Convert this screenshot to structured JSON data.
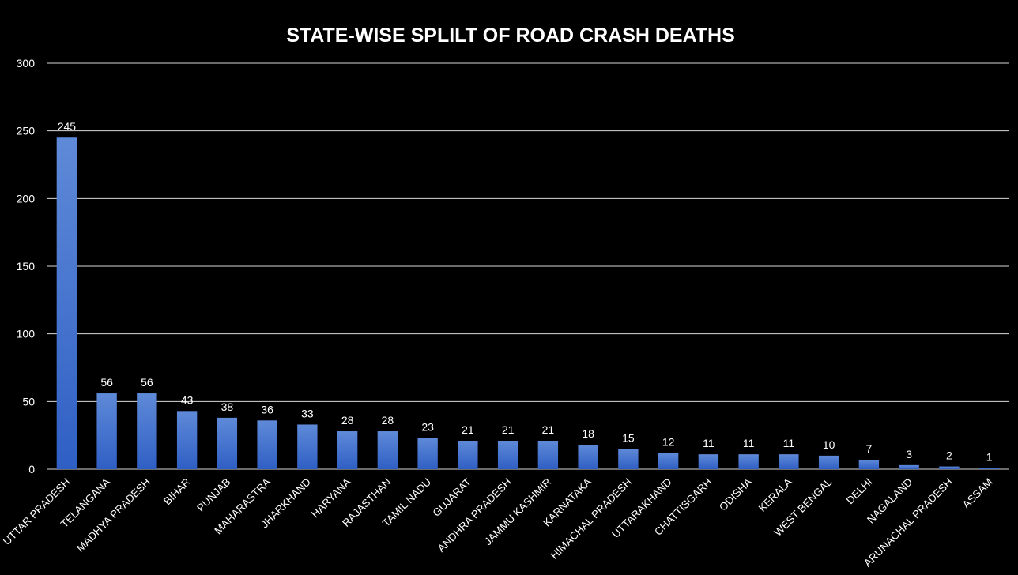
{
  "chart_data": {
    "type": "bar",
    "title": "STATE-WISE  SPLILT OF ROAD CRASH DEATHS",
    "xlabel": "",
    "ylabel": "",
    "ylim": [
      0,
      300
    ],
    "yticks": [
      0,
      50,
      100,
      150,
      200,
      250,
      300
    ],
    "grid": true,
    "legend": "none",
    "categories": [
      "UTTAR PRADESH",
      "TELANGANA",
      "MADHYA PRADESH",
      "BIHAR",
      "PUNJAB",
      "MAHARASTRA",
      "JHARKHAND",
      "HARYANA",
      "RAJASTHAN",
      "TAMIL NADU",
      "GUJARAT",
      "ANDHRA PRADESH",
      "JAMMU KASHMIR",
      "KARNATAKA",
      "HIMACHAL PRADESH",
      "UTTARAKHAND",
      "CHATTISGARH",
      "ODISHA",
      "KERALA",
      "WEST BENGAL",
      "DELHI",
      "NAGALAND",
      "ARUNACHAL PRADESH",
      "ASSAM"
    ],
    "values": [
      245,
      56,
      56,
      43,
      38,
      36,
      33,
      28,
      28,
      23,
      21,
      21,
      21,
      18,
      15,
      12,
      11,
      11,
      11,
      10,
      7,
      3,
      2,
      1
    ],
    "colors": {
      "background": "#000000",
      "bar_top": "#5f8ad8",
      "bar_bottom": "#2f5fc4",
      "text": "#ffffff",
      "gridline": "#d9d9d9"
    }
  }
}
